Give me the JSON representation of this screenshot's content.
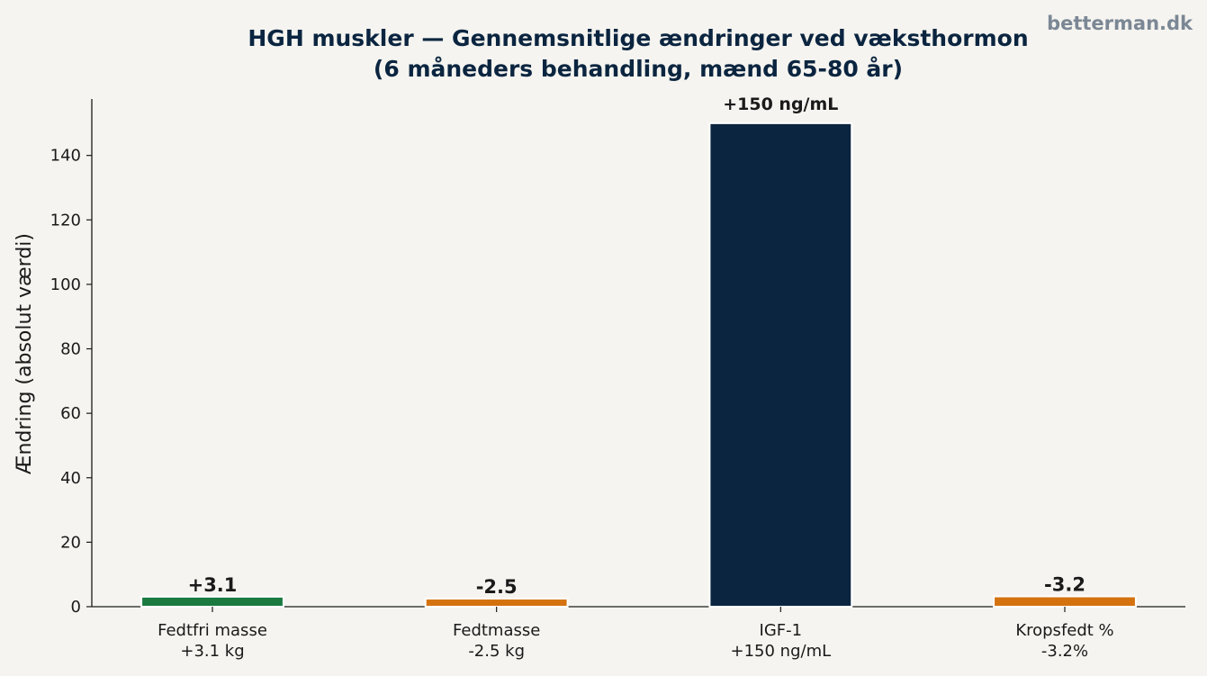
{
  "watermark": "betterman.dk",
  "chart_data": {
    "type": "bar",
    "title_line1": "HGH muskler — Gennemsnitlige ændringer ved væksthormon",
    "title_line2": "(6 måneders behandling, mænd 65-80 år)",
    "ylabel": "Ændring (absolut værdi)",
    "xlabel": "",
    "ylim": [
      0,
      157.5
    ],
    "yticks": [
      0,
      20,
      40,
      60,
      80,
      100,
      120,
      140
    ],
    "categories": [
      [
        "Fedtfri masse",
        "+3.1 kg"
      ],
      [
        "Fedtmasse",
        "-2.5 kg"
      ],
      [
        "IGF-1",
        "+150 ng/mL"
      ],
      [
        "Kropsfedt %",
        "-3.2%"
      ]
    ],
    "values": [
      3.1,
      2.5,
      150,
      3.2
    ],
    "value_labels": [
      "+3.1",
      "-2.5",
      "+150 ng/mL",
      "-3.2"
    ],
    "colors": [
      "#1a7a40",
      "#d4720f",
      "#0b2540",
      "#d4720f"
    ],
    "grid": false,
    "legend": "none"
  }
}
